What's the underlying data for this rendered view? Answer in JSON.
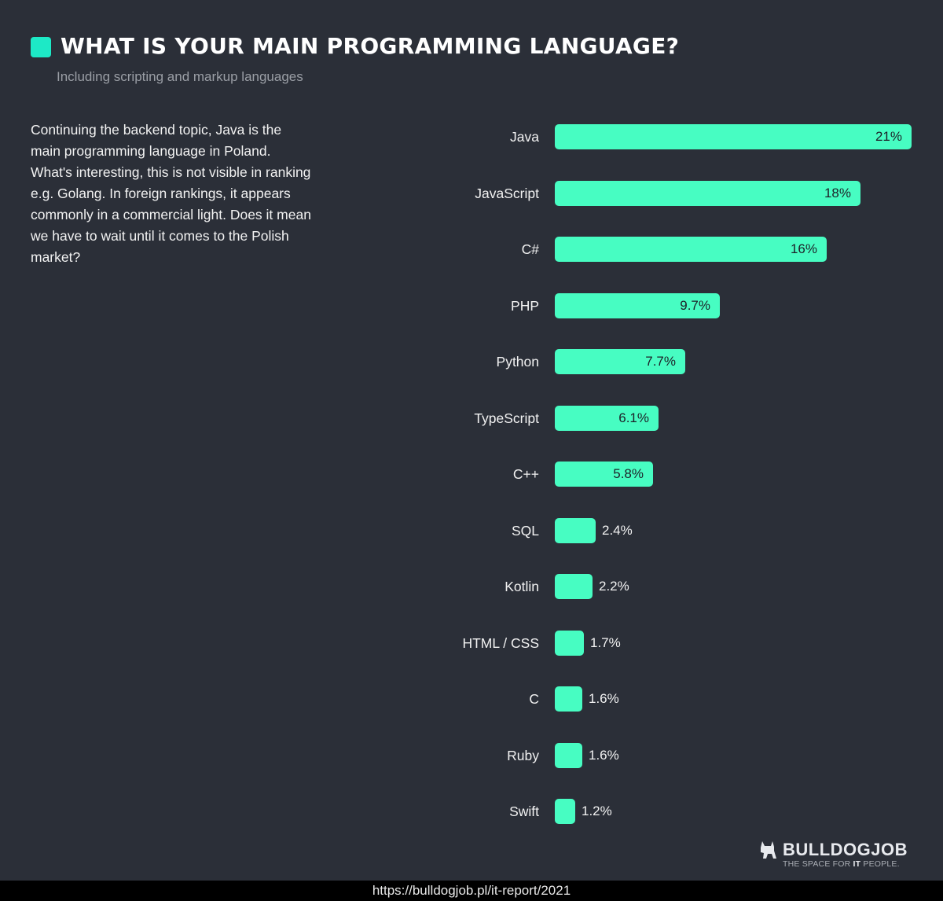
{
  "header": {
    "title": "WHAT IS YOUR MAIN PROGRAMMING LANGUAGE?",
    "subtitle": "Including scripting and markup languages"
  },
  "description": "Continuing the backend topic, Java is the main programming language in Poland. What's interesting, this is not visible in ranking e.g. Golang. In foreign rankings, it appears commonly in a commercial light. Does it mean we have to wait until it comes to the Polish market?",
  "colors": {
    "bar": "#47fdc2",
    "accent": "#1de9c6",
    "background": "#2b2f38"
  },
  "logo": {
    "name": "BULLDOGJOB",
    "tagline_pre": "THE SPACE FOR ",
    "tagline_bold": "IT",
    "tagline_post": " PEOPLE."
  },
  "footer": {
    "url": "https://bulldogjob.pl/it-report/2021"
  },
  "chart_data": {
    "type": "bar",
    "orientation": "horizontal",
    "title": "WHAT IS YOUR MAIN PROGRAMMING LANGUAGE?",
    "subtitle": "Including scripting and markup languages",
    "xlabel": "",
    "ylabel": "",
    "grid": false,
    "categories": [
      "Java",
      "JavaScript",
      "C#",
      "PHP",
      "Python",
      "TypeScript",
      "C++",
      "SQL",
      "Kotlin",
      "HTML / CSS",
      "C",
      "Ruby",
      "Swift"
    ],
    "values": [
      21,
      18,
      16,
      9.7,
      7.7,
      6.1,
      5.8,
      2.4,
      2.2,
      1.7,
      1.6,
      1.6,
      1.2
    ],
    "value_labels": [
      "21%",
      "18%",
      "16%",
      "9.7%",
      "7.7%",
      "6.1%",
      "5.8%",
      "2.4%",
      "2.2%",
      "1.7%",
      "1.6%",
      "1.6%",
      "1.2%"
    ],
    "unit": "%"
  }
}
